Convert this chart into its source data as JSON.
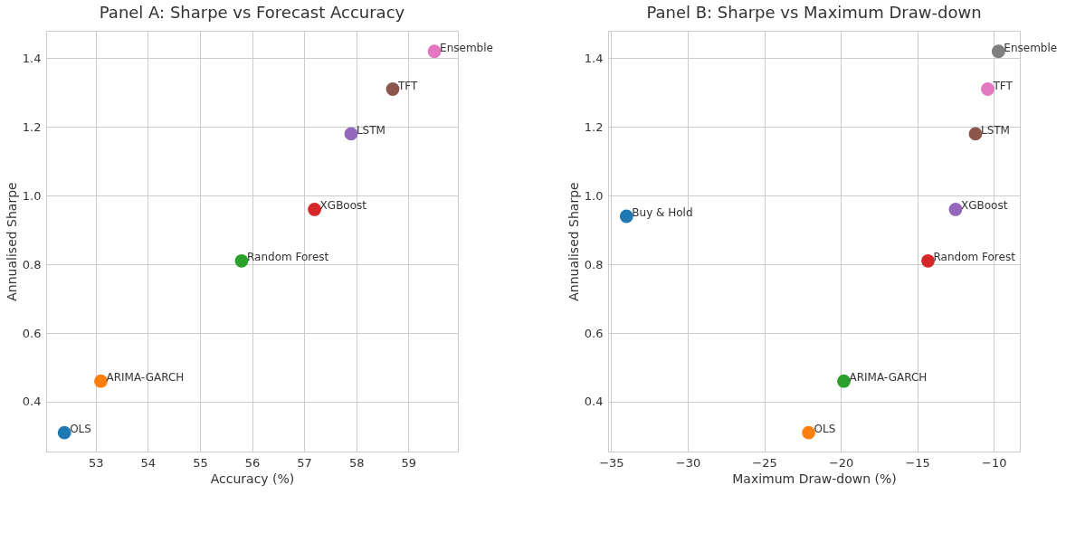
{
  "chart_data": [
    {
      "type": "scatter",
      "title": "Panel A: Sharpe vs Forecast Accuracy",
      "xlabel": "Accuracy (%)",
      "ylabel": "Annualised Sharpe",
      "xlim": [
        52.05,
        59.95
      ],
      "ylim": [
        0.255,
        1.48
      ],
      "xticks": [
        53,
        54,
        55,
        56,
        57,
        58,
        59
      ],
      "yticks": [
        0.4,
        0.6,
        0.8,
        {
          "value": 1,
          "label": "1.0"
        },
        1.2,
        1.4
      ],
      "grid": true,
      "legend": false,
      "marker": "circle",
      "series": [
        {
          "name": "OLS",
          "color": "#1f77b4",
          "x": [
            52.4
          ],
          "values": [
            0.31
          ]
        },
        {
          "name": "ARIMA-GARCH",
          "color": "#ff7f0e",
          "x": [
            53.1
          ],
          "values": [
            0.46
          ]
        },
        {
          "name": "Random Forest",
          "color": "#2ca02c",
          "x": [
            55.8
          ],
          "values": [
            0.81
          ]
        },
        {
          "name": "XGBoost",
          "color": "#d62728",
          "x": [
            57.2
          ],
          "values": [
            0.96
          ]
        },
        {
          "name": "LSTM",
          "color": "#9467bd",
          "x": [
            57.9
          ],
          "values": [
            1.18
          ]
        },
        {
          "name": "TFT",
          "color": "#8c564b",
          "x": [
            58.7
          ],
          "values": [
            1.31
          ]
        },
        {
          "name": "Ensemble",
          "color": "#e377c2",
          "x": [
            59.5
          ],
          "values": [
            1.42
          ]
        }
      ]
    },
    {
      "type": "scatter",
      "title": "Panel B: Sharpe vs Maximum Draw-down",
      "xlabel": "Maximum Draw-down (%)",
      "ylabel": "Annualised Sharpe",
      "xlim": [
        -35.2,
        -8.3
      ],
      "ylim": [
        0.255,
        1.48
      ],
      "xticks": [
        -35,
        -30,
        -25,
        -20,
        -15,
        -10
      ],
      "yticks": [
        0.4,
        0.6,
        0.8,
        {
          "value": 1,
          "label": "1.0"
        },
        1.2,
        1.4
      ],
      "grid": true,
      "legend": false,
      "marker": "circle",
      "series": [
        {
          "name": "Buy & Hold",
          "color": "#1f77b4",
          "x": [
            -34
          ],
          "values": [
            0.94
          ]
        },
        {
          "name": "OLS",
          "color": "#ff7f0e",
          "x": [
            -22.1
          ],
          "values": [
            0.31
          ]
        },
        {
          "name": "ARIMA-GARCH",
          "color": "#2ca02c",
          "x": [
            -19.8
          ],
          "values": [
            0.46
          ]
        },
        {
          "name": "Random Forest",
          "color": "#d62728",
          "x": [
            -14.3
          ],
          "values": [
            0.81
          ]
        },
        {
          "name": "XGBoost",
          "color": "#9467bd",
          "x": [
            -12.5
          ],
          "values": [
            0.96
          ]
        },
        {
          "name": "LSTM",
          "color": "#8c564b",
          "x": [
            -11.2
          ],
          "values": [
            1.18
          ]
        },
        {
          "name": "TFT",
          "color": "#e377c2",
          "x": [
            -10.4
          ],
          "values": [
            1.31
          ]
        },
        {
          "name": "Ensemble",
          "color": "#7f7f7f",
          "x": [
            -9.7
          ],
          "values": [
            1.42
          ]
        }
      ]
    }
  ]
}
